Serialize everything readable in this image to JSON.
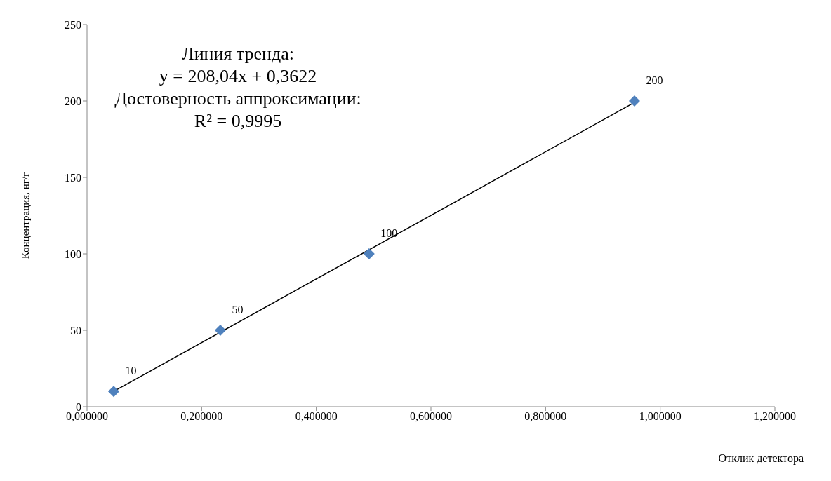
{
  "chart_data": {
    "type": "scatter",
    "xlabel": "Отклик детектора",
    "ylabel": "Концентрация, нг/г",
    "annotations": [
      "Линия тренда:",
      "y = 208,04x + 0,3622",
      "Достоверность аппроксимации:",
      "R² = 0,9995"
    ],
    "xlim": [
      0,
      1.2
    ],
    "xticks": [
      {
        "value": 0,
        "label": "0,000000"
      },
      {
        "value": 0.2,
        "label": "0,200000"
      },
      {
        "value": 0.4,
        "label": "0,400000"
      },
      {
        "value": 0.6,
        "label": "0,600000"
      },
      {
        "value": 0.8,
        "label": "0,800000"
      },
      {
        "value": 1,
        "label": "1,000000"
      },
      {
        "value": 1.2,
        "label": "1,200000"
      }
    ],
    "ylim": [
      0,
      250
    ],
    "yticks": [
      0,
      50,
      100,
      150,
      200,
      250
    ],
    "series": [
      {
        "color": "#4f81bd",
        "marker": "diamond",
        "data_labels": true,
        "x": [
          0.0465,
          0.2326,
          0.492,
          0.955
        ],
        "values": [
          10,
          50,
          100,
          200
        ]
      },
      {
        "type": "line",
        "color": "#000000",
        "x": [
          0.0465,
          0.955
        ],
        "values": [
          10,
          199
        ]
      }
    ]
  }
}
